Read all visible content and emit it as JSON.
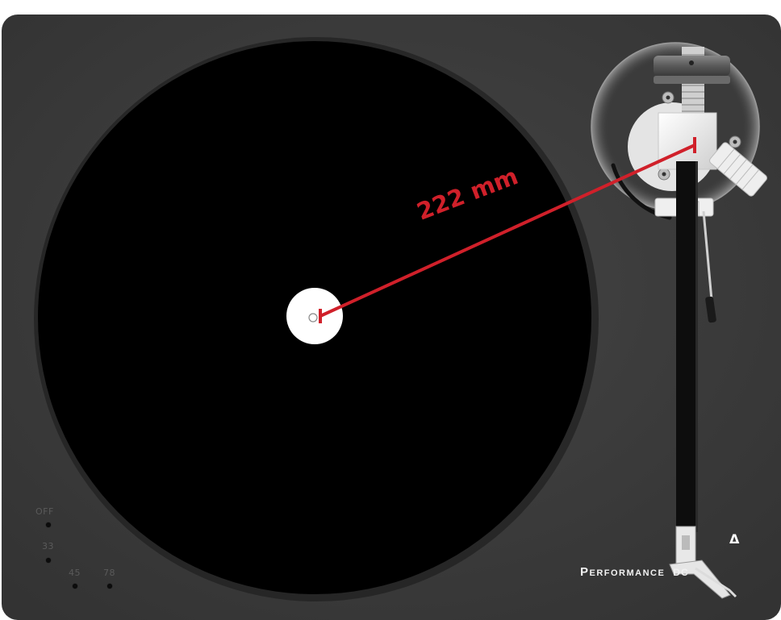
{
  "product": {
    "brand_main": "Performance",
    "brand_suffix": "DC",
    "logo_glyph": "Δ"
  },
  "speed_selector": {
    "options": [
      "OFF",
      "33",
      "45",
      "78"
    ]
  },
  "measurement": {
    "label": "222 mm",
    "color": "#d0202a"
  },
  "colors": {
    "plinth": "#3a3a3a",
    "platter": "#000000",
    "label": "#ffffff",
    "arm": "#e6e6e6"
  }
}
